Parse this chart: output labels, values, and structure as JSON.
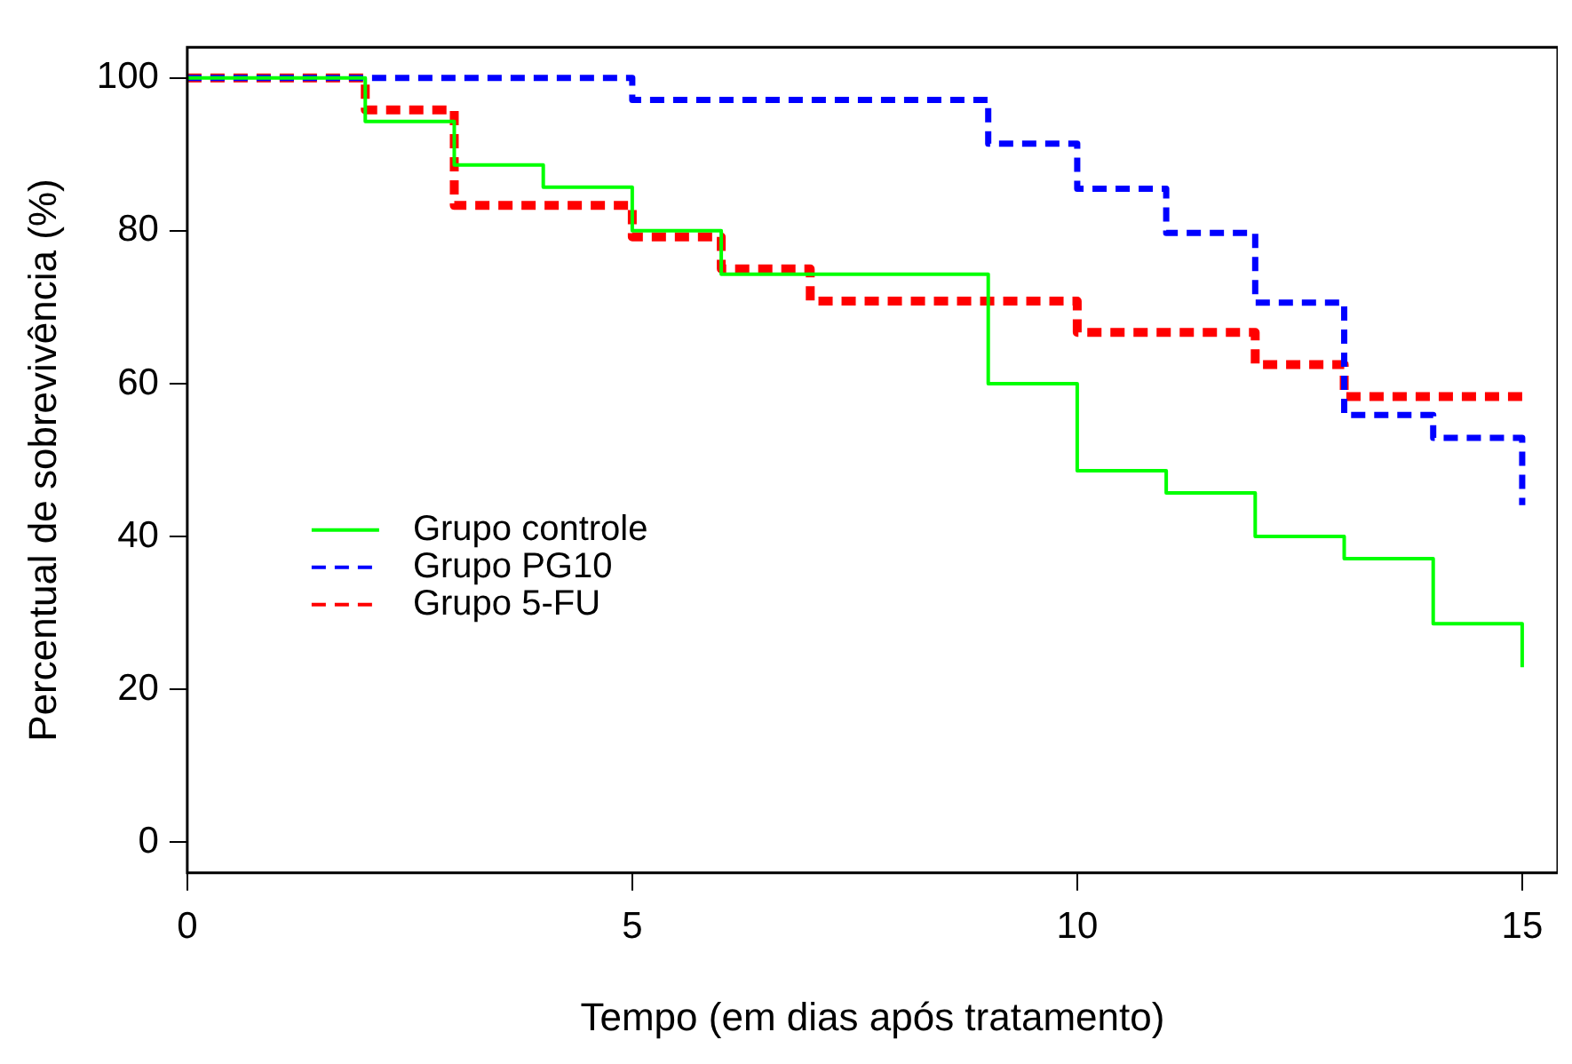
{
  "chart_data": {
    "type": "step",
    "xlabel": "Tempo (em dias após tratamento)",
    "ylabel": "Percentual de sobrevivência (%)",
    "xlim": [
      0,
      15.4
    ],
    "ylim": [
      -4,
      104
    ],
    "xticks": [
      0,
      5,
      10,
      15
    ],
    "yticks": [
      0,
      20,
      40,
      60,
      80,
      100
    ],
    "grid": false,
    "legend": "bottom left",
    "series": [
      {
        "name": "Grupo controle",
        "color": "#00ff00",
        "line_style": "solid",
        "x": [
          0,
          2,
          3,
          4,
          5,
          6,
          9,
          10,
          11,
          12,
          13,
          14,
          15
        ],
        "values": [
          100,
          94.3,
          88.6,
          85.7,
          80,
          74.3,
          60,
          48.6,
          45.7,
          40,
          37.1,
          28.6,
          22.9
        ]
      },
      {
        "name": "Grupo PG10",
        "color": "#0000ff",
        "line_style": "dashed",
        "x": [
          0,
          5,
          9,
          10,
          11,
          12,
          13,
          14,
          15
        ],
        "values": [
          100,
          97.1,
          91.4,
          85.5,
          79.7,
          70.6,
          55.9,
          52.9,
          44.1
        ]
      },
      {
        "name": "Grupo 5-FU",
        "color": "#ff0000",
        "line_style": "dashed",
        "x": [
          0,
          2,
          3,
          5,
          6,
          7,
          10,
          12,
          13,
          15
        ],
        "values": [
          100,
          95.8,
          83.3,
          79.2,
          75,
          70.8,
          66.7,
          62.5,
          58.3,
          58.3
        ]
      }
    ]
  }
}
